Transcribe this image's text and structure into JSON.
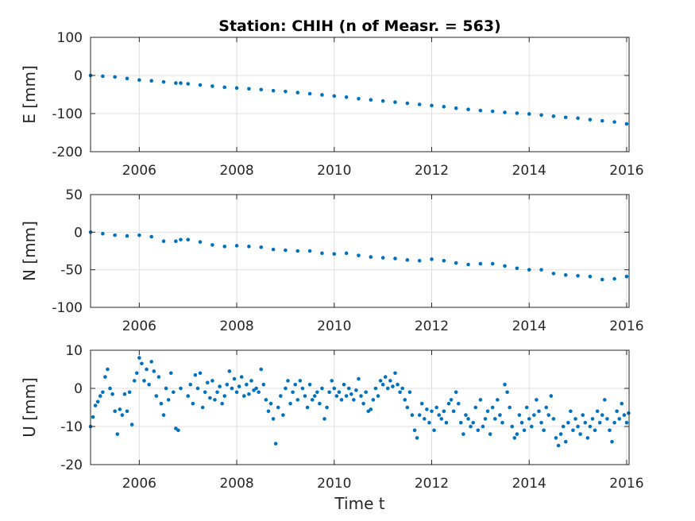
{
  "figure": {
    "title": "Station: CHIH (n of Measr. = 563)",
    "xlabel": "Time t"
  },
  "chart_data": [
    {
      "type": "scatter",
      "name": "E",
      "ylabel": "E [mm]",
      "xlim": [
        2005.0,
        2016.05
      ],
      "ylim": [
        -200,
        100
      ],
      "xticks": [
        2006,
        2008,
        2010,
        2012,
        2014,
        2016
      ],
      "yticks": [
        -200,
        -100,
        0,
        100
      ],
      "grid": true,
      "color": "#0072BD",
      "points": [
        [
          2005.0,
          0.0
        ],
        [
          2005.25,
          -2.0
        ],
        [
          2005.5,
          -4.0
        ],
        [
          2005.75,
          -8.0
        ],
        [
          2006.0,
          -12.0
        ],
        [
          2006.25,
          -14.0
        ],
        [
          2006.5,
          -17.0
        ],
        [
          2006.75,
          -20.0
        ],
        [
          2006.85,
          -20.0
        ],
        [
          2007.0,
          -22.0
        ],
        [
          2007.25,
          -25.0
        ],
        [
          2007.5,
          -28.0
        ],
        [
          2007.75,
          -31.0
        ],
        [
          2008.0,
          -33.0
        ],
        [
          2008.25,
          -35.0
        ],
        [
          2008.5,
          -37.0
        ],
        [
          2008.75,
          -40.0
        ],
        [
          2009.0,
          -42.0
        ],
        [
          2009.25,
          -45.0
        ],
        [
          2009.5,
          -48.0
        ],
        [
          2009.75,
          -51.0
        ],
        [
          2010.0,
          -54.0
        ],
        [
          2010.25,
          -57.0
        ],
        [
          2010.5,
          -61.0
        ],
        [
          2010.75,
          -64.0
        ],
        [
          2011.0,
          -67.0
        ],
        [
          2011.25,
          -70.0
        ],
        [
          2011.5,
          -73.0
        ],
        [
          2011.75,
          -76.0
        ],
        [
          2012.0,
          -79.0
        ],
        [
          2012.25,
          -82.0
        ],
        [
          2012.5,
          -86.0
        ],
        [
          2012.75,
          -89.0
        ],
        [
          2013.0,
          -92.0
        ],
        [
          2013.25,
          -94.0
        ],
        [
          2013.5,
          -97.0
        ],
        [
          2013.75,
          -99.0
        ],
        [
          2014.0,
          -101.0
        ],
        [
          2014.25,
          -104.0
        ],
        [
          2014.5,
          -107.0
        ],
        [
          2014.75,
          -110.0
        ],
        [
          2015.0,
          -112.0
        ],
        [
          2015.25,
          -116.0
        ],
        [
          2015.5,
          -119.0
        ],
        [
          2015.75,
          -122.0
        ],
        [
          2016.0,
          -127.0
        ]
      ]
    },
    {
      "type": "scatter",
      "name": "N",
      "ylabel": "N [mm]",
      "xlim": [
        2005.0,
        2016.05
      ],
      "ylim": [
        -100,
        50
      ],
      "xticks": [
        2006,
        2008,
        2010,
        2012,
        2014,
        2016
      ],
      "yticks": [
        -100,
        -50,
        0,
        50
      ],
      "grid": true,
      "color": "#0072BD",
      "points": [
        [
          2005.0,
          0.0
        ],
        [
          2005.25,
          -2.0
        ],
        [
          2005.5,
          -4.0
        ],
        [
          2005.75,
          -5.0
        ],
        [
          2006.0,
          -4.0
        ],
        [
          2006.25,
          -6.0
        ],
        [
          2006.5,
          -12.0
        ],
        [
          2006.75,
          -12.0
        ],
        [
          2006.85,
          -10.0
        ],
        [
          2007.0,
          -10.0
        ],
        [
          2007.25,
          -13.0
        ],
        [
          2007.5,
          -17.0
        ],
        [
          2007.75,
          -19.0
        ],
        [
          2008.0,
          -18.0
        ],
        [
          2008.25,
          -19.0
        ],
        [
          2008.5,
          -20.0
        ],
        [
          2008.75,
          -23.0
        ],
        [
          2009.0,
          -24.0
        ],
        [
          2009.25,
          -25.0
        ],
        [
          2009.5,
          -25.0
        ],
        [
          2009.75,
          -28.0
        ],
        [
          2010.0,
          -29.0
        ],
        [
          2010.25,
          -28.0
        ],
        [
          2010.5,
          -31.0
        ],
        [
          2010.75,
          -33.0
        ],
        [
          2011.0,
          -34.0
        ],
        [
          2011.25,
          -35.0
        ],
        [
          2011.5,
          -37.0
        ],
        [
          2011.75,
          -38.0
        ],
        [
          2012.0,
          -36.0
        ],
        [
          2012.25,
          -38.0
        ],
        [
          2012.5,
          -41.0
        ],
        [
          2012.75,
          -43.0
        ],
        [
          2013.0,
          -42.0
        ],
        [
          2013.25,
          -42.0
        ],
        [
          2013.5,
          -45.0
        ],
        [
          2013.75,
          -48.0
        ],
        [
          2014.0,
          -50.0
        ],
        [
          2014.25,
          -50.0
        ],
        [
          2014.5,
          -55.0
        ],
        [
          2014.75,
          -57.0
        ],
        [
          2015.0,
          -58.0
        ],
        [
          2015.25,
          -59.0
        ],
        [
          2015.5,
          -63.0
        ],
        [
          2015.75,
          -62.0
        ],
        [
          2016.0,
          -59.0
        ]
      ]
    },
    {
      "type": "scatter",
      "name": "U",
      "ylabel": "U [mm]",
      "xlim": [
        2005.0,
        2016.05
      ],
      "ylim": [
        -20,
        10
      ],
      "xticks": [
        2006,
        2008,
        2010,
        2012,
        2014,
        2016
      ],
      "yticks": [
        -20,
        -10,
        0,
        10
      ],
      "grid": true,
      "color": "#0072BD",
      "points": [
        [
          2005.0,
          -10.0
        ],
        [
          2005.05,
          -7.5
        ],
        [
          2005.1,
          -4.5
        ],
        [
          2005.15,
          -3.5
        ],
        [
          2005.2,
          -2.0
        ],
        [
          2005.25,
          -1.0
        ],
        [
          2005.3,
          3.0
        ],
        [
          2005.35,
          5.0
        ],
        [
          2005.4,
          0.0
        ],
        [
          2005.45,
          -1.5
        ],
        [
          2005.5,
          -6.0
        ],
        [
          2005.55,
          -12.0
        ],
        [
          2005.6,
          -5.5
        ],
        [
          2005.65,
          -7.0
        ],
        [
          2005.7,
          -1.5
        ],
        [
          2005.75,
          -6.0
        ],
        [
          2005.8,
          -1.0
        ],
        [
          2005.85,
          -9.5
        ],
        [
          2005.9,
          2.0
        ],
        [
          2005.95,
          4.0
        ],
        [
          2006.0,
          8.0
        ],
        [
          2006.05,
          6.5
        ],
        [
          2006.1,
          2.0
        ],
        [
          2006.15,
          5.0
        ],
        [
          2006.2,
          1.0
        ],
        [
          2006.25,
          7.0
        ],
        [
          2006.3,
          4.5
        ],
        [
          2006.35,
          -2.0
        ],
        [
          2006.4,
          3.0
        ],
        [
          2006.45,
          -4.0
        ],
        [
          2006.5,
          -7.0
        ],
        [
          2006.55,
          0.0
        ],
        [
          2006.6,
          -3.0
        ],
        [
          2006.65,
          4.0
        ],
        [
          2006.7,
          -1.0
        ],
        [
          2006.75,
          -10.5
        ],
        [
          2006.8,
          -11.0
        ],
        [
          2006.85,
          0.0
        ],
        [
          2007.0,
          -2.0
        ],
        [
          2007.05,
          1.0
        ],
        [
          2007.1,
          -4.0
        ],
        [
          2007.15,
          3.5
        ],
        [
          2007.2,
          0.0
        ],
        [
          2007.25,
          4.0
        ],
        [
          2007.3,
          -5.0
        ],
        [
          2007.35,
          -1.0
        ],
        [
          2007.4,
          1.5
        ],
        [
          2007.45,
          -2.5
        ],
        [
          2007.5,
          2.0
        ],
        [
          2007.55,
          -3.0
        ],
        [
          2007.6,
          -1.0
        ],
        [
          2007.65,
          0.5
        ],
        [
          2007.7,
          -4.0
        ],
        [
          2007.75,
          -2.0
        ],
        [
          2007.8,
          1.0
        ],
        [
          2007.85,
          4.5
        ],
        [
          2007.9,
          0.0
        ],
        [
          2007.95,
          2.5
        ],
        [
          2008.0,
          -1.0
        ],
        [
          2008.05,
          0.5
        ],
        [
          2008.1,
          3.0
        ],
        [
          2008.15,
          -2.0
        ],
        [
          2008.2,
          1.0
        ],
        [
          2008.25,
          -1.5
        ],
        [
          2008.3,
          2.0
        ],
        [
          2008.35,
          -0.5
        ],
        [
          2008.4,
          0.0
        ],
        [
          2008.45,
          -1.0
        ],
        [
          2008.5,
          5.0
        ],
        [
          2008.55,
          1.0
        ],
        [
          2008.6,
          -3.0
        ],
        [
          2008.65,
          -6.0
        ],
        [
          2008.7,
          -4.0
        ],
        [
          2008.75,
          -8.0
        ],
        [
          2008.8,
          -14.5
        ],
        [
          2008.85,
          -5.0
        ],
        [
          2008.9,
          -2.0
        ],
        [
          2008.95,
          -7.0
        ],
        [
          2009.0,
          0.0
        ],
        [
          2009.05,
          2.0
        ],
        [
          2009.1,
          -4.0
        ],
        [
          2009.15,
          -1.0
        ],
        [
          2009.2,
          1.0
        ],
        [
          2009.25,
          -3.0
        ],
        [
          2009.3,
          2.0
        ],
        [
          2009.35,
          0.0
        ],
        [
          2009.4,
          -2.0
        ],
        [
          2009.45,
          -5.0
        ],
        [
          2009.5,
          1.0
        ],
        [
          2009.55,
          -3.0
        ],
        [
          2009.6,
          -2.0
        ],
        [
          2009.65,
          -1.0
        ],
        [
          2009.7,
          -4.0
        ],
        [
          2009.75,
          0.0
        ],
        [
          2009.8,
          -8.0
        ],
        [
          2009.85,
          -5.0
        ],
        [
          2009.9,
          -1.0
        ],
        [
          2009.95,
          2.0
        ],
        [
          2010.0,
          0.0
        ],
        [
          2010.05,
          -2.0
        ],
        [
          2010.1,
          -1.0
        ],
        [
          2010.15,
          -3.0
        ],
        [
          2010.2,
          1.0
        ],
        [
          2010.25,
          -2.0
        ],
        [
          2010.3,
          0.0
        ],
        [
          2010.35,
          -1.5
        ],
        [
          2010.4,
          -3.0
        ],
        [
          2010.45,
          -0.5
        ],
        [
          2010.5,
          2.5
        ],
        [
          2010.55,
          -2.0
        ],
        [
          2010.6,
          -4.0
        ],
        [
          2010.65,
          -1.0
        ],
        [
          2010.7,
          -6.0
        ],
        [
          2010.75,
          -5.5
        ],
        [
          2010.8,
          -3.0
        ],
        [
          2010.85,
          0.0
        ],
        [
          2010.9,
          -2.0
        ],
        [
          2010.95,
          2.0
        ],
        [
          2011.0,
          1.0
        ],
        [
          2011.05,
          3.0
        ],
        [
          2011.1,
          0.0
        ],
        [
          2011.15,
          2.0
        ],
        [
          2011.2,
          0.5
        ],
        [
          2011.25,
          4.0
        ],
        [
          2011.3,
          1.0
        ],
        [
          2011.35,
          -1.0
        ],
        [
          2011.4,
          0.0
        ],
        [
          2011.45,
          -3.0
        ],
        [
          2011.5,
          -5.0
        ],
        [
          2011.55,
          -1.0
        ],
        [
          2011.6,
          -7.0
        ],
        [
          2011.65,
          -11.0
        ],
        [
          2011.7,
          -13.0
        ],
        [
          2011.75,
          -7.0
        ],
        [
          2011.8,
          -4.0
        ],
        [
          2011.85,
          -8.0
        ],
        [
          2011.9,
          -5.5
        ],
        [
          2011.95,
          -9.0
        ],
        [
          2012.0,
          -6.0
        ],
        [
          2012.05,
          -11.0
        ],
        [
          2012.1,
          -5.0
        ],
        [
          2012.15,
          -7.0
        ],
        [
          2012.2,
          -8.0
        ],
        [
          2012.25,
          -6.0
        ],
        [
          2012.3,
          -9.0
        ],
        [
          2012.35,
          -4.0
        ],
        [
          2012.4,
          -3.0
        ],
        [
          2012.45,
          -6.0
        ],
        [
          2012.5,
          -1.0
        ],
        [
          2012.55,
          -4.0
        ],
        [
          2012.6,
          -9.0
        ],
        [
          2012.65,
          -12.0
        ],
        [
          2012.7,
          -7.0
        ],
        [
          2012.75,
          -8.0
        ],
        [
          2012.8,
          -10.0
        ],
        [
          2012.85,
          -9.0
        ],
        [
          2012.9,
          -5.0
        ],
        [
          2012.95,
          -11.0
        ],
        [
          2013.0,
          -3.0
        ],
        [
          2013.05,
          -10.0
        ],
        [
          2013.1,
          -8.0
        ],
        [
          2013.15,
          -6.0
        ],
        [
          2013.2,
          -12.0
        ],
        [
          2013.25,
          -5.0
        ],
        [
          2013.3,
          -8.0
        ],
        [
          2013.35,
          -3.0
        ],
        [
          2013.4,
          -7.0
        ],
        [
          2013.45,
          -9.0
        ],
        [
          2013.5,
          1.0
        ],
        [
          2013.55,
          -1.0
        ],
        [
          2013.6,
          -5.0
        ],
        [
          2013.65,
          -10.0
        ],
        [
          2013.7,
          -13.0
        ],
        [
          2013.75,
          -12.0
        ],
        [
          2013.8,
          -7.0
        ],
        [
          2013.85,
          -9.0
        ],
        [
          2013.9,
          -11.0
        ],
        [
          2013.95,
          -5.0
        ],
        [
          2014.0,
          -8.0
        ],
        [
          2014.05,
          -10.0
        ],
        [
          2014.1,
          -7.0
        ],
        [
          2014.15,
          -3.0
        ],
        [
          2014.2,
          -6.0
        ],
        [
          2014.25,
          -9.0
        ],
        [
          2014.3,
          -11.0
        ],
        [
          2014.35,
          -5.0
        ],
        [
          2014.4,
          -7.0
        ],
        [
          2014.45,
          -2.0
        ],
        [
          2014.5,
          -8.0
        ],
        [
          2014.55,
          -13.0
        ],
        [
          2014.6,
          -15.0
        ],
        [
          2014.65,
          -12.0
        ],
        [
          2014.7,
          -10.0
        ],
        [
          2014.75,
          -14.0
        ],
        [
          2014.8,
          -9.0
        ],
        [
          2014.85,
          -6.0
        ],
        [
          2014.9,
          -11.0
        ],
        [
          2014.95,
          -8.0
        ],
        [
          2015.0,
          -10.0
        ],
        [
          2015.05,
          -12.0
        ],
        [
          2015.1,
          -7.0
        ],
        [
          2015.15,
          -9.0
        ],
        [
          2015.2,
          -13.0
        ],
        [
          2015.25,
          -10.0
        ],
        [
          2015.3,
          -8.0
        ],
        [
          2015.35,
          -11.0
        ],
        [
          2015.4,
          -6.0
        ],
        [
          2015.45,
          -9.0
        ],
        [
          2015.5,
          -7.0
        ],
        [
          2015.55,
          -3.0
        ],
        [
          2015.6,
          -8.0
        ],
        [
          2015.65,
          -11.0
        ],
        [
          2015.7,
          -14.0
        ],
        [
          2015.75,
          -9.0
        ],
        [
          2015.8,
          -6.0
        ],
        [
          2015.85,
          -8.0
        ],
        [
          2015.9,
          -4.0
        ],
        [
          2015.95,
          -7.0
        ],
        [
          2016.0,
          -9.0
        ],
        [
          2016.04,
          -6.5
        ]
      ]
    }
  ]
}
